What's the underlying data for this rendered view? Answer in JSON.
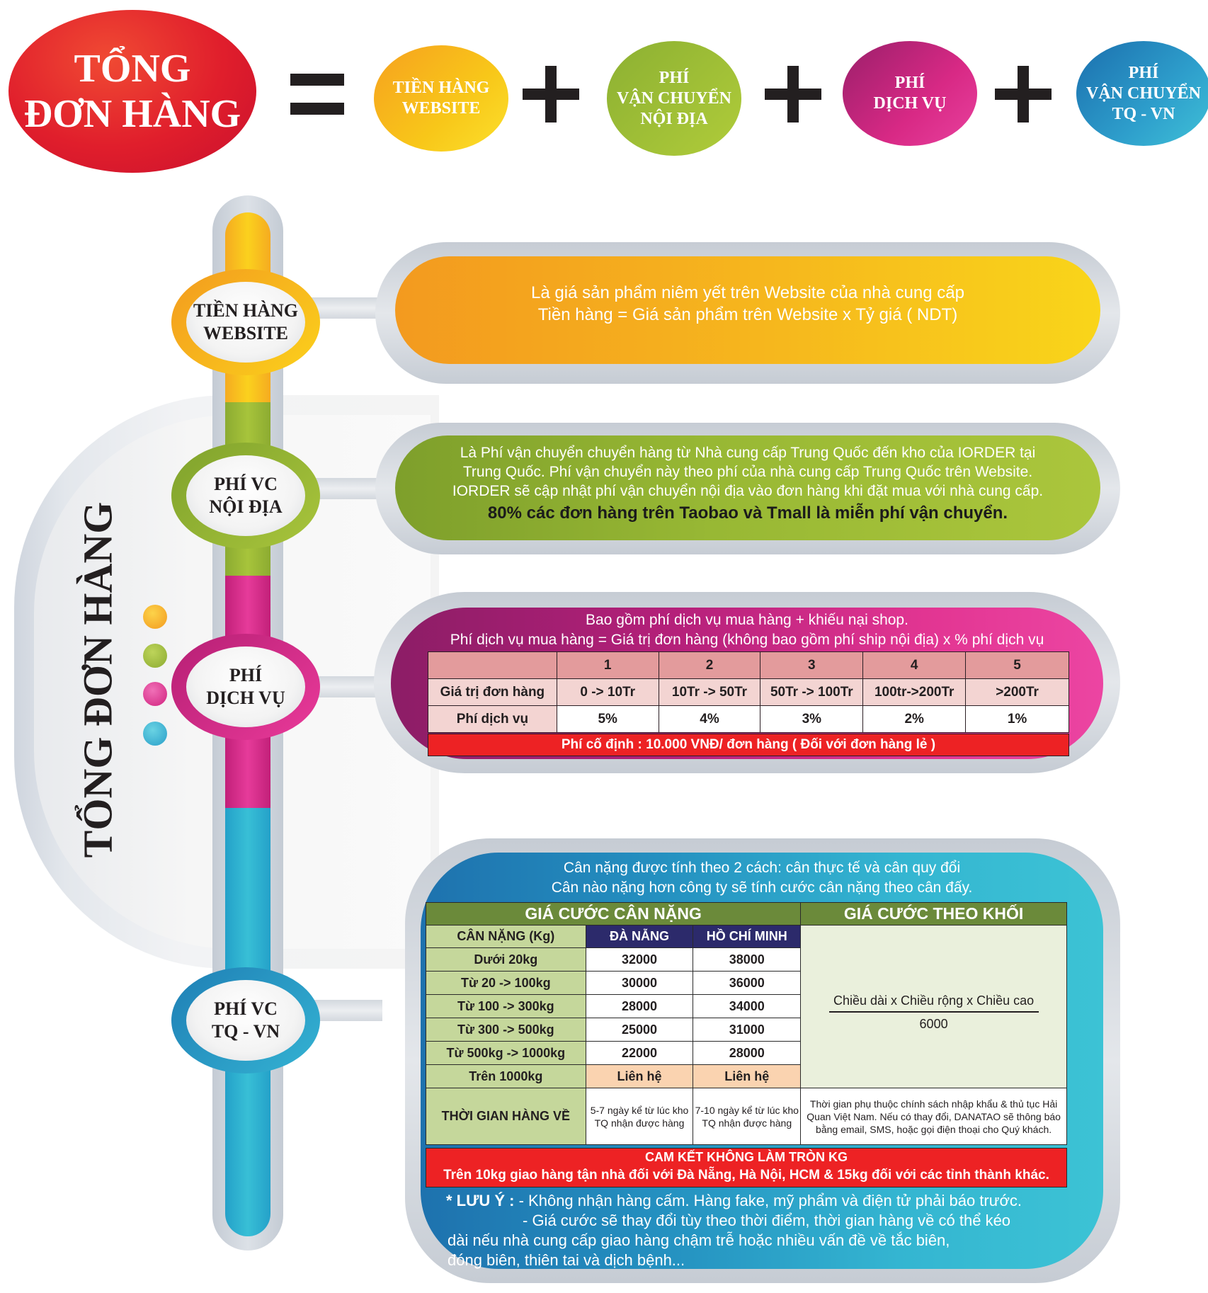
{
  "header": {
    "total": [
      "TỔNG",
      "ĐƠN HÀNG"
    ],
    "formula": [
      [
        "TIỀN HÀNG",
        "WEBSITE"
      ],
      [
        "PHÍ",
        "VẬN CHUYỂN",
        "NỘI ĐỊA"
      ],
      [
        "PHÍ",
        "DỊCH VỤ"
      ],
      [
        "PHÍ",
        "VẬN CHUYỂN",
        "TQ - VN"
      ]
    ]
  },
  "side_title": "TỔNG ĐƠN HÀNG",
  "colors": {
    "red": "#e01e2c",
    "orange": "#f6a11f",
    "green": "#98b834",
    "magenta": "#d82985",
    "blue": "#2e9fcc"
  },
  "nodes": [
    [
      "TIỀN HÀNG",
      "WEBSITE"
    ],
    [
      "PHÍ VC",
      "NỘI ĐỊA"
    ],
    [
      "PHÍ",
      "DỊCH VỤ"
    ],
    [
      "PHÍ VC",
      "TQ - VN"
    ]
  ],
  "website_fee": {
    "lines": [
      "Là giá sản phẩm niêm yết trên Website của nhà cung cấp",
      "Tiền hàng = Giá sản phẩm trên Website x Tỷ giá ( NDT)"
    ]
  },
  "domestic_fee": {
    "lines": [
      "Là Phí vận chuyển chuyển hàng từ Nhà cung cấp Trung Quốc đến kho của IORDER tại",
      "Trung Quốc. Phí vận chuyển này theo phí của nhà cung cấp Trung Quốc trên Website.",
      "IORDER sẽ cập nhật phí vận chuyển nội địa vào đơn hàng khi đặt mua với nhà cung cấp."
    ],
    "highlight": "80% các đơn hàng trên Taobao và Tmall là miễn phí vận chuyển."
  },
  "service_fee": {
    "lines": [
      "Bao gồm phí dịch vụ mua hàng + khiếu nại shop.",
      "Phí dịch vụ mua hàng = Giá trị đơn hàng (không bao gồm phí ship nội địa) x % phí dịch vụ"
    ],
    "levels": [
      "1",
      "2",
      "3",
      "4",
      "5"
    ],
    "row_value_label": "Giá trị đơn hàng",
    "values": [
      "0 -> 10Tr",
      "10Tr -> 50Tr",
      "50Tr -> 100Tr",
      "100tr->200Tr",
      ">200Tr"
    ],
    "row_fee_label": "Phí dịch vụ",
    "fees": [
      "5%",
      "4%",
      "3%",
      "2%",
      "1%"
    ],
    "fixed": "Phí cố định : 10.000 VNĐ/ đơn hàng ( Đối với đơn hàng lẻ )"
  },
  "shipping": {
    "intro": [
      "Cân nặng được tính theo 2 cách: cân thực tế và cân quy đổi",
      "Cân nào nặng hơn công ty sẽ tính cước cân nặng theo cân đấy."
    ],
    "weight_title": "GIÁ CƯỚC CÂN NẶNG",
    "volume_title": "GIÁ CƯỚC THEO KHỐI",
    "col_weight": "CÂN NẶNG (Kg)",
    "col_danang": "ĐÀ NẴNG",
    "col_hcm": "HỒ CHÍ MINH",
    "rows": [
      {
        "label": "Dưới 20kg",
        "danang": "32000",
        "hcm": "38000"
      },
      {
        "label": "Từ 20 -> 100kg",
        "danang": "30000",
        "hcm": "36000"
      },
      {
        "label": "Từ 100 -> 300kg",
        "danang": "28000",
        "hcm": "34000"
      },
      {
        "label": "Từ 300 -> 500kg",
        "danang": "25000",
        "hcm": "31000"
      },
      {
        "label": "Từ 500kg -> 1000kg",
        "danang": "22000",
        "hcm": "28000"
      },
      {
        "label": "Trên 1000kg",
        "danang": "Liên hệ",
        "hcm": "Liên hệ"
      }
    ],
    "formula_numerator": "Chiều dài x Chiều rộng x Chiều cao",
    "formula_denominator": "6000",
    "time_label": "THỜI GIAN HÀNG VỀ",
    "time_danang": "5-7 ngày kể từ lúc kho TQ nhận được hàng",
    "time_hcm": "7-10 ngày kể từ lúc kho TQ nhận được hàng",
    "time_note": "Thời gian phụ thuộc chính sách nhập khẩu & thủ tục Hải Quan Việt Nam. Nếu có thay đổi, DANATAO sẽ thông báo bằng email, SMS, hoặc gọi điện thoại cho Quý khách.",
    "commit_title": "CAM KẾT KHÔNG LÀM TRÒN KG",
    "commit_text": "Trên 10kg giao hàng tận nhà đối với Đà Nẵng, Hà Nội, HCM & 15kg đối với các tỉnh thành khác.",
    "note_label": "* LƯU Ý :",
    "notes": [
      "- Không nhận hàng cấm. Hàng fake, mỹ phẩm và điện tử phải báo trước.",
      "- Giá cước sẽ thay đổi tùy theo thời điểm, thời gian hàng về có thể kéo",
      "dài nếu nhà cung cấp giao hàng chậm trễ hoặc nhiều vấn đề về tắc biên,",
      "đóng biên, thiên tai và dịch bệnh..."
    ]
  }
}
